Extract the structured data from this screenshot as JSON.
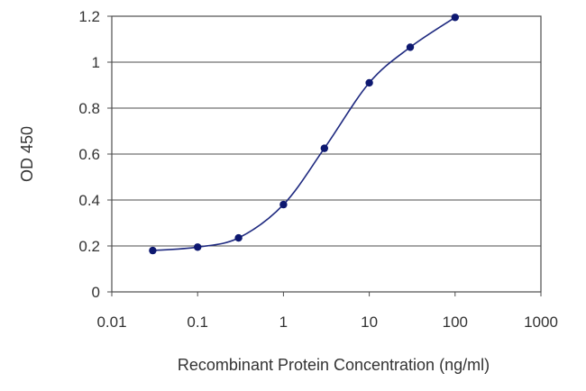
{
  "chart_data": {
    "type": "line",
    "title": "",
    "xlabel": "Recombinant Protein Concentration (ng/ml)",
    "ylabel": "OD 450",
    "x_scale": "log",
    "xlim": [
      0.01,
      1000
    ],
    "ylim": [
      0,
      1.2
    ],
    "x_ticks": [
      "0.01",
      "0.1",
      "1",
      "10",
      "100",
      "1000"
    ],
    "y_ticks": [
      "0",
      "0.2",
      "0.4",
      "0.6",
      "0.8",
      "1",
      "1.2"
    ],
    "grid": "horizontal",
    "legend": "none",
    "series": [
      {
        "x": [
          0.03,
          0.1,
          0.3,
          1,
          3,
          10,
          30,
          100
        ],
        "y": [
          0.18,
          0.195,
          0.235,
          0.38,
          0.625,
          0.91,
          1.065,
          1.195
        ]
      }
    ],
    "colors": {
      "series": "#1f2a80",
      "marker": "#0d1870",
      "grid": "#4d4d4d",
      "frame": "#4d4d4d",
      "text": "#333333"
    }
  }
}
